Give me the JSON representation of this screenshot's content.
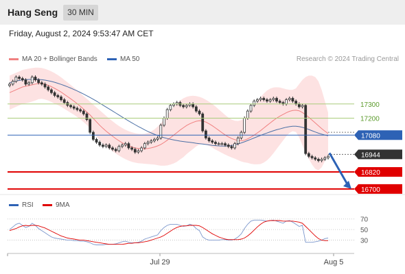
{
  "header": {
    "title": "Hang Seng",
    "interval": "30 MIN"
  },
  "timestamp": "Friday, August 2, 2024 9:53:47 AM CET",
  "credit": "Research © 2024 Trading Central",
  "colors": {
    "bollinger_fill": "#fde2e2",
    "ma20": "#f08080",
    "ma50": "#4a6fa5",
    "resistance": "#a8cc7a",
    "pivot": "#2d62b5",
    "support": "#e00000",
    "current": "#333333",
    "arrow": "#2d62b5",
    "rsi": "#7a96cc",
    "rsi_ma": "#e00000"
  },
  "chart_data": [
    {
      "type": "candlestick",
      "title": "",
      "legend": [
        {
          "label": "MA 20 + Bollinger Bands",
          "color": "#f08080"
        },
        {
          "label": "MA 50",
          "color": "#4a6fa5"
        }
      ],
      "legend_position": "top-left",
      "x_ticks": [
        "Jul 29",
        "Aug 5"
      ],
      "y_range": [
        16680,
        17560
      ],
      "levels": [
        {
          "value": 17300,
          "label": "17300",
          "kind": "resistance"
        },
        {
          "value": 17200,
          "label": "17200",
          "kind": "resistance"
        },
        {
          "value": 17080,
          "label": "17080",
          "kind": "pivot"
        },
        {
          "value": 16944,
          "label": "16944",
          "kind": "current"
        },
        {
          "value": 16820,
          "label": "16820",
          "kind": "support"
        },
        {
          "value": 16700,
          "label": "16700",
          "kind": "support"
        }
      ],
      "close": [
        17440,
        17460,
        17490,
        17480,
        17470,
        17440,
        17450,
        17490,
        17470,
        17450,
        17440,
        17420,
        17400,
        17380,
        17360,
        17350,
        17330,
        17310,
        17290,
        17280,
        17270,
        17260,
        17250,
        17230,
        17190,
        17100,
        17050,
        17030,
        17010,
        17000,
        17010,
        16990,
        16980,
        16970,
        17000,
        17010,
        17020,
        16990,
        16980,
        16960,
        16970,
        16990,
        17020,
        17030,
        17040,
        17050,
        17060,
        17150,
        17200,
        17260,
        17290,
        17300,
        17310,
        17290,
        17280,
        17290,
        17300,
        17280,
        17250,
        17230,
        17110,
        17060,
        17040,
        17030,
        17020,
        17020,
        17020,
        17010,
        17000,
        16990,
        17020,
        17060,
        17100,
        17200,
        17250,
        17290,
        17320,
        17330,
        17340,
        17330,
        17320,
        17330,
        17340,
        17320,
        17310,
        17300,
        17330,
        17340,
        17320,
        17300,
        17280,
        17290,
        16950,
        16930,
        16920,
        16910,
        16900,
        16910,
        16920,
        16930
      ],
      "ma20": [
        17380,
        17390,
        17400,
        17410,
        17420,
        17425,
        17430,
        17435,
        17440,
        17445,
        17445,
        17440,
        17432,
        17422,
        17410,
        17398,
        17384,
        17368,
        17352,
        17336,
        17320,
        17302,
        17284,
        17264,
        17244,
        17222,
        17198,
        17174,
        17150,
        17128,
        17108,
        17090,
        17072,
        17055,
        17040,
        17026,
        17014,
        17004,
        16996,
        16990,
        16986,
        16984,
        16984,
        16986,
        16990,
        16996,
        17004,
        17014,
        17028,
        17044,
        17062,
        17080,
        17098,
        17116,
        17132,
        17148,
        17160,
        17170,
        17178,
        17182,
        17180,
        17172,
        17160,
        17146,
        17130,
        17114,
        17098,
        17082,
        17068,
        17056,
        17048,
        17042,
        17040,
        17044,
        17054,
        17066,
        17080,
        17096,
        17112,
        17130,
        17148,
        17166,
        17184,
        17200,
        17214,
        17226,
        17238,
        17248,
        17254,
        17256,
        17252,
        17240,
        17224,
        17206,
        17186,
        17166,
        17146,
        17126,
        17108,
        17092
      ],
      "bb_upper": [
        17500,
        17510,
        17520,
        17530,
        17540,
        17545,
        17550,
        17553,
        17556,
        17556,
        17554,
        17548,
        17540,
        17530,
        17518,
        17504,
        17488,
        17470,
        17452,
        17434,
        17416,
        17396,
        17376,
        17356,
        17336,
        17316,
        17296,
        17276,
        17256,
        17236,
        17216,
        17196,
        17178,
        17160,
        17144,
        17130,
        17118,
        17108,
        17100,
        17094,
        17090,
        17088,
        17090,
        17096,
        17106,
        17120,
        17140,
        17164,
        17192,
        17222,
        17252,
        17280,
        17304,
        17324,
        17340,
        17350,
        17356,
        17358,
        17356,
        17350,
        17342,
        17330,
        17316,
        17300,
        17282,
        17262,
        17242,
        17222,
        17204,
        17190,
        17182,
        17180,
        17186,
        17200,
        17224,
        17254,
        17286,
        17318,
        17348,
        17374,
        17394,
        17408,
        17416,
        17418,
        17416,
        17410,
        17404,
        17400,
        17400,
        17410,
        17440,
        17470,
        17490,
        17500,
        17500,
        17490,
        17460,
        17400,
        17320,
        17240
      ],
      "bb_lower": [
        17260,
        17270,
        17280,
        17290,
        17300,
        17305,
        17310,
        17317,
        17324,
        17334,
        17336,
        17332,
        17324,
        17314,
        17302,
        17292,
        17280,
        17266,
        17252,
        17238,
        17224,
        17208,
        17192,
        17172,
        17152,
        17128,
        17100,
        17072,
        17044,
        17020,
        17000,
        16984,
        16966,
        16950,
        16936,
        16922,
        16910,
        16900,
        16892,
        16886,
        16882,
        16880,
        16878,
        16876,
        16874,
        16872,
        16868,
        16864,
        16864,
        16866,
        16872,
        16880,
        16892,
        16908,
        16924,
        16946,
        16964,
        16982,
        17000,
        17014,
        17018,
        17014,
        17004,
        16992,
        16978,
        16966,
        16954,
        16942,
        16932,
        16922,
        16914,
        16904,
        16894,
        16888,
        16884,
        16878,
        16874,
        16874,
        16876,
        16886,
        16902,
        16924,
        16952,
        16982,
        17012,
        17042,
        17072,
        17096,
        17108,
        17102,
        17064,
        17010,
        16958,
        16912,
        16872,
        16842,
        16832,
        16852,
        16896,
        16944
      ],
      "ma50": [
        17450,
        17456,
        17462,
        17466,
        17470,
        17472,
        17473,
        17474,
        17474,
        17473,
        17471,
        17468,
        17464,
        17459,
        17453,
        17446,
        17438,
        17430,
        17421,
        17412,
        17402,
        17392,
        17381,
        17370,
        17358,
        17346,
        17333,
        17320,
        17306,
        17292,
        17278,
        17264,
        17250,
        17236,
        17222,
        17208,
        17194,
        17180,
        17167,
        17154,
        17141,
        17129,
        17117,
        17106,
        17096,
        17086,
        17077,
        17069,
        17062,
        17056,
        17051,
        17046,
        17042,
        17038,
        17035,
        17032,
        17029,
        17026,
        17023,
        17020,
        17017,
        17014,
        17011,
        17008,
        17006,
        17004,
        17003,
        17003,
        17004,
        17007,
        17012,
        17018,
        17025,
        17033,
        17042,
        17051,
        17060,
        17069,
        17078,
        17087,
        17095,
        17103,
        17111,
        17118,
        17124,
        17130,
        17136,
        17140,
        17143,
        17143,
        17140,
        17135,
        17128,
        17120,
        17111,
        17102,
        17094,
        17087,
        17081,
        17076
      ]
    },
    {
      "type": "line",
      "title": "",
      "legend": [
        {
          "label": "RSI",
          "color": "#7a96cc"
        },
        {
          "label": "9MA",
          "color": "#e00000"
        }
      ],
      "legend_position": "top-left",
      "y_ticks": [
        {
          "value": 70,
          "label": "70"
        },
        {
          "value": 50,
          "label": "50"
        },
        {
          "value": 30,
          "label": "30"
        }
      ],
      "y_range": [
        10,
        80
      ],
      "rsi": [
        50,
        55,
        60,
        62,
        58,
        54,
        56,
        62,
        58,
        52,
        48,
        44,
        40,
        36,
        34,
        33,
        32,
        31,
        30,
        30,
        29,
        29,
        28,
        28,
        27,
        25,
        22,
        21,
        21,
        21,
        22,
        22,
        22,
        23,
        25,
        27,
        28,
        26,
        25,
        25,
        26,
        28,
        32,
        34,
        36,
        38,
        40,
        48,
        54,
        58,
        60,
        60,
        60,
        58,
        56,
        57,
        60,
        58,
        52,
        48,
        36,
        32,
        30,
        30,
        30,
        30,
        31,
        31,
        30,
        30,
        32,
        36,
        42,
        52,
        60,
        66,
        68,
        68,
        68,
        67,
        66,
        67,
        68,
        66,
        64,
        62,
        66,
        67,
        64,
        60,
        56,
        58,
        26,
        26,
        26,
        27,
        28,
        30,
        33,
        34
      ],
      "rsi_ma": [
        48,
        50,
        52,
        55,
        57,
        58,
        57,
        58,
        58,
        57,
        55,
        53,
        50,
        47,
        44,
        41,
        38,
        36,
        34,
        33,
        32,
        31,
        30,
        30,
        29,
        28,
        27,
        26,
        25,
        24,
        23,
        22,
        22,
        22,
        22,
        22,
        23,
        24,
        24,
        25,
        25,
        26,
        27,
        28,
        30,
        32,
        34,
        36,
        39,
        43,
        47,
        51,
        54,
        56,
        57,
        57,
        58,
        58,
        58,
        57,
        54,
        50,
        46,
        42,
        39,
        36,
        34,
        32,
        31,
        31,
        31,
        31,
        32,
        34,
        38,
        43,
        49,
        55,
        60,
        64,
        66,
        67,
        67,
        67,
        67,
        66,
        66,
        66,
        66,
        65,
        64,
        62,
        56,
        50,
        44,
        38,
        33,
        30,
        29,
        29
      ]
    }
  ]
}
